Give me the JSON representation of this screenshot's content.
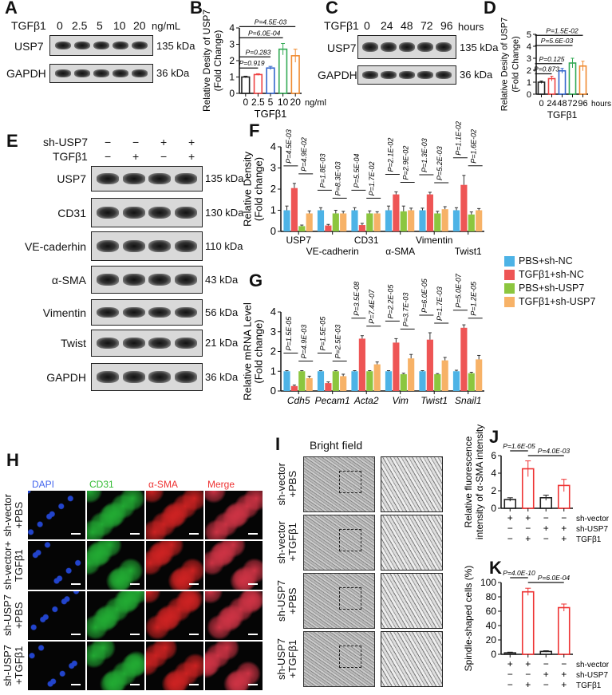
{
  "panels": {
    "A": "A",
    "B": "B",
    "C": "C",
    "D": "D",
    "E": "E",
    "F": "F",
    "G": "G",
    "H": "H",
    "I": "I",
    "J": "J",
    "K": "K"
  },
  "blotA": {
    "treatment": "TGFβ1",
    "doses": [
      "0",
      "2.5",
      "5",
      "10",
      "20"
    ],
    "unit": "ng/mL",
    "rows": [
      {
        "name": "USP7",
        "kda": "135 kDa"
      },
      {
        "name": "GAPDH",
        "kda": "36 kDa"
      }
    ]
  },
  "blotC": {
    "treatment": "TGFβ1",
    "times": [
      "0",
      "24",
      "48",
      "72",
      "96"
    ],
    "unit": "hours",
    "rows": [
      {
        "name": "USP7",
        "kda": "135 kDa"
      },
      {
        "name": "GAPDH",
        "kda": "36 kDa"
      }
    ]
  },
  "blotE": {
    "conditions": [
      {
        "name": "sh-USP7",
        "signs": [
          "−",
          "−",
          "+",
          "+"
        ]
      },
      {
        "name": "TGFβ1",
        "signs": [
          "−",
          "+",
          "−",
          "+"
        ]
      }
    ],
    "rows": [
      {
        "name": "USP7",
        "kda": "135 kDa"
      },
      {
        "name": "CD31",
        "kda": "130 kDa"
      },
      {
        "name": "VE-caderhin",
        "kda": "110 kDa"
      },
      {
        "name": "α-SMA",
        "kda": "43 kDa"
      },
      {
        "name": "Vimentin",
        "kda": "56 kDa"
      },
      {
        "name": "Twist",
        "kda": "21 kDa"
      },
      {
        "name": "GAPDH",
        "kda": "36 kDa"
      }
    ]
  },
  "legend": [
    {
      "label": "PBS+sh-NC",
      "color": "#4db3e6"
    },
    {
      "label": "TGFβ1+sh-NC",
      "color": "#ee5555"
    },
    {
      "label": "PBS+sh-USP7",
      "color": "#8cc63f"
    },
    {
      "label": "TGFβ1+sh-USP7",
      "color": "#f7b267"
    }
  ],
  "panelH": {
    "channels": [
      {
        "name": "DAPI",
        "color": "#3355dd"
      },
      {
        "name": "CD31",
        "color": "#33bb33"
      },
      {
        "name": "α-SMA",
        "color": "#dd3333"
      },
      {
        "name": "Merge",
        "color": "#dd3333"
      }
    ],
    "rows": [
      [
        "sh-vector",
        "+PBS"
      ],
      [
        "sh-vector+",
        "TGFβ1"
      ],
      [
        "sh-USP7",
        "+PBS"
      ],
      [
        "sh-USP7",
        "+TGFβ1"
      ]
    ]
  },
  "panelI": {
    "title": "Bright field",
    "rows": [
      [
        "sh-vector",
        "+PBS"
      ],
      [
        "sh-vector",
        "+TGFβ1"
      ],
      [
        "sh-USP7",
        "+PBS"
      ],
      [
        "sh-USP7",
        "+TGFβ1"
      ]
    ]
  },
  "chart_data": [
    {
      "id": "B",
      "type": "bar",
      "categories": [
        "0",
        "2.5",
        "5",
        "10",
        "20"
      ],
      "values": [
        1.0,
        1.15,
        1.55,
        2.7,
        2.3
      ],
      "errors": [
        0.05,
        0.05,
        0.1,
        0.35,
        0.4
      ],
      "colors": [
        "#222222",
        "#ee4444",
        "#3366cc",
        "#33aa55",
        "#f08a30"
      ],
      "ylim": [
        0,
        4
      ],
      "yticks": [
        0,
        1,
        2,
        3,
        4
      ],
      "xlabel": "TGFβ1",
      "xunit": "ng/ml",
      "ylabel": [
        "Relative Desity of USP7",
        "(Fold Change)"
      ],
      "comparisons": [
        {
          "a": 0,
          "b": 1,
          "p": "P=0.919"
        },
        {
          "a": 0,
          "b": 2,
          "p": "P=0.283"
        },
        {
          "a": 0,
          "b": 3,
          "p": "P=6.0E-04"
        },
        {
          "a": 0,
          "b": 4,
          "p": "P=4.5E-03"
        }
      ]
    },
    {
      "id": "D",
      "type": "bar",
      "categories": [
        "0",
        "24",
        "48",
        "72",
        "96"
      ],
      "values": [
        1.0,
        1.3,
        1.95,
        2.6,
        2.35
      ],
      "errors": [
        0.1,
        0.2,
        0.2,
        0.4,
        0.4
      ],
      "colors": [
        "#222222",
        "#ee4444",
        "#3366cc",
        "#33aa55",
        "#f08a30"
      ],
      "ylim": [
        0,
        5
      ],
      "yticks": [
        0,
        1,
        2,
        3,
        4,
        5
      ],
      "xlabel": "TGFβ1",
      "xunit": "hours",
      "ylabel": [
        "Relative Desity of USP7",
        "(Fold Change)"
      ],
      "comparisons": [
        {
          "a": 0,
          "b": 1,
          "p": "P=0.873"
        },
        {
          "a": 0,
          "b": 2,
          "p": "P=0.125"
        },
        {
          "a": 0,
          "b": 3,
          "p": "P=5.6E-03"
        },
        {
          "a": 0,
          "b": 4,
          "p": "P=1.5E-02"
        }
      ]
    },
    {
      "id": "F",
      "type": "bar",
      "categories": [
        "USP7",
        "VE-cadherin",
        "CD31",
        "α-SMA",
        "Vimentin",
        "Twist1"
      ],
      "ylim": [
        0,
        4
      ],
      "yticks": [
        0,
        1,
        2,
        3,
        4
      ],
      "ylabel": [
        "Relative Density",
        "(Fold change)"
      ],
      "series": [
        {
          "name": "PBS+sh-NC",
          "values": [
            1.0,
            1.0,
            1.0,
            1.0,
            1.0,
            1.0
          ],
          "errors": [
            0.2,
            0.12,
            0.12,
            0.2,
            0.1,
            0.12
          ]
        },
        {
          "name": "TGFβ1+sh-NC",
          "values": [
            2.05,
            0.28,
            0.3,
            1.75,
            1.75,
            2.2
          ],
          "errors": [
            0.22,
            0.05,
            0.08,
            0.12,
            0.1,
            0.45
          ]
        },
        {
          "name": "PBS+sh-USP7",
          "values": [
            0.25,
            0.85,
            0.85,
            0.95,
            0.85,
            0.8
          ],
          "errors": [
            0.05,
            0.15,
            0.12,
            0.25,
            0.1,
            0.12
          ]
        },
        {
          "name": "TGFβ1+sh-USP7",
          "values": [
            0.85,
            0.85,
            0.85,
            1.0,
            1.05,
            1.0
          ],
          "errors": [
            0.12,
            0.1,
            0.08,
            0.1,
            0.12,
            0.08
          ]
        }
      ],
      "pvalues": [
        [
          "P=4.5E-03",
          "P=4.9E-02"
        ],
        [
          "P=1.8E-03",
          "P=8.3E-03"
        ],
        [
          "P=5.5E-04",
          "P=1.7E-02"
        ],
        [
          "P=2.1E-02",
          "P=2.9E-02"
        ],
        [
          "P=1.3E-03",
          "P=5.2E-03"
        ],
        [
          "P=1.1E-02",
          "P=1.6E-02"
        ]
      ]
    },
    {
      "id": "G",
      "type": "bar",
      "categories": [
        "Cdh5",
        "Pecam1",
        "Acta2",
        "Vim",
        "Twist1",
        "Snail1"
      ],
      "ylim": [
        0,
        4
      ],
      "yticks": [
        0,
        1,
        2,
        3,
        4
      ],
      "ylabel": [
        "Relative mRNA Level",
        "(Fold change)"
      ],
      "series": [
        {
          "name": "PBS+sh-NC",
          "values": [
            1.0,
            1.0,
            1.0,
            1.0,
            1.0,
            1.0
          ],
          "errors": [
            0.03,
            0.03,
            0.03,
            0.03,
            0.03,
            0.05
          ]
        },
        {
          "name": "TGFβ1+sh-NC",
          "values": [
            0.25,
            0.4,
            2.65,
            2.45,
            2.6,
            3.2
          ],
          "errors": [
            0.05,
            0.06,
            0.15,
            0.2,
            0.35,
            0.15
          ]
        },
        {
          "name": "PBS+sh-USP7",
          "values": [
            1.0,
            1.0,
            1.0,
            0.85,
            0.85,
            0.9
          ],
          "errors": [
            0.03,
            0.03,
            0.03,
            0.05,
            0.03,
            0.05
          ]
        },
        {
          "name": "TGFβ1+sh-USP7",
          "values": [
            0.65,
            0.75,
            1.35,
            1.65,
            1.55,
            1.6
          ],
          "errors": [
            0.1,
            0.1,
            0.12,
            0.2,
            0.15,
            0.2
          ]
        }
      ],
      "pvalues": [
        [
          "P=1.5E-05",
          "P=4.9E-03"
        ],
        [
          "P=1.5E-05",
          "P=2.5E-03"
        ],
        [
          "P=3.5E-08",
          "P=7.4E-07"
        ],
        [
          "P=2.2E-05",
          "P=3.7E-03"
        ],
        [
          "P=6.0E-05",
          "P=1.7E-03"
        ],
        [
          "P=5.0E-07",
          "P=1.2E-05"
        ]
      ]
    },
    {
      "id": "J",
      "type": "bar",
      "categories": [
        "1",
        "2",
        "3",
        "4"
      ],
      "values": [
        1.0,
        4.5,
        1.2,
        2.6
      ],
      "errors": [
        0.2,
        0.9,
        0.3,
        0.7
      ],
      "colors": [
        "#222222",
        "#ee3333",
        "#222222",
        "#ee3333"
      ],
      "ylim": [
        0,
        6
      ],
      "yticks": [
        0,
        2,
        4,
        6
      ],
      "ylabel": [
        "Relative fluorescence",
        "intensity of α-SMA intensity"
      ],
      "comparisons": [
        {
          "a": 0,
          "b": 1,
          "p": "P=1.6E-05"
        },
        {
          "a": 1,
          "b": 3,
          "p": "P=4.0E-03"
        }
      ],
      "conditions": [
        {
          "name": "sh-vector",
          "signs": [
            "+",
            "+",
            "−",
            "−"
          ]
        },
        {
          "name": "sh-USP7",
          "signs": [
            "−",
            "−",
            "+",
            "+"
          ]
        },
        {
          "name": "TGFβ1",
          "signs": [
            "−",
            "+",
            "−",
            "+"
          ]
        }
      ]
    },
    {
      "id": "K",
      "type": "bar",
      "categories": [
        "1",
        "2",
        "3",
        "4"
      ],
      "values": [
        2,
        87,
        4,
        65
      ],
      "errors": [
        1,
        5,
        1,
        5
      ],
      "colors": [
        "#222222",
        "#ee3333",
        "#222222",
        "#ee3333"
      ],
      "ylim": [
        0,
        100
      ],
      "yticks": [
        0,
        20,
        40,
        60,
        80,
        100
      ],
      "ylabel": [
        "Spindle-shaped cells  (%)"
      ],
      "comparisons": [
        {
          "a": 0,
          "b": 1,
          "p": "P=4.0E-10"
        },
        {
          "a": 1,
          "b": 3,
          "p": "P=6.0E-04"
        }
      ],
      "conditions": [
        {
          "name": "sh-vector",
          "signs": [
            "+",
            "+",
            "−",
            "−"
          ]
        },
        {
          "name": "sh-USP7",
          "signs": [
            "−",
            "−",
            "+",
            "+"
          ]
        },
        {
          "name": "TGFβ1",
          "signs": [
            "−",
            "+",
            "−",
            "+"
          ]
        }
      ]
    }
  ]
}
